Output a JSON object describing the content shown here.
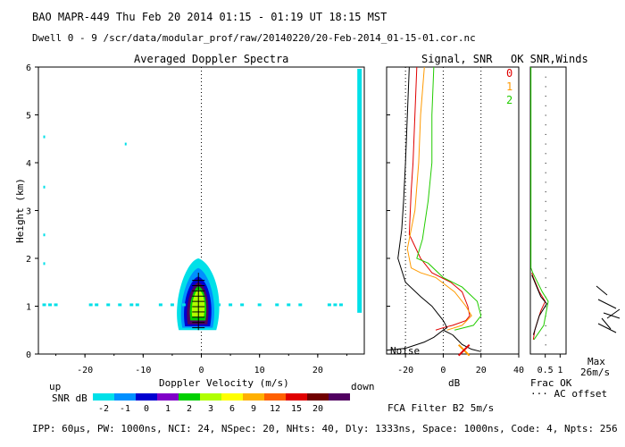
{
  "header": {
    "line1": "BAO  MAPR-449  Thu Feb 20 2014 01:15 - 01:19 UT 18:15 MST",
    "line2": "Dwell  0 - 9   /scr/data/modular_prof/raw/20140220/20-Feb-2014_01-15-01.cor.nc"
  },
  "panels": {
    "spectra_title": "Averaged Doppler Spectra",
    "signal_title": "Signal, SNR",
    "ok_title": "OK SNR,Winds"
  },
  "legend": {
    "labels": [
      "0",
      "1",
      "2"
    ],
    "colors": [
      "#e00000",
      "#ff9a00",
      "#22cc00"
    ]
  },
  "labels": {
    "up": "up",
    "down": "down",
    "snr_db": "SNR dB",
    "doppler_velocity": "Doppler Velocity (m/s)",
    "height": "Height (km)",
    "db": "dB",
    "noise": "Noise",
    "fca": "FCA Filter B2   5m/s",
    "frac_ok": "Frac OK",
    "ac_offset": "··· AC offset",
    "max": "Max",
    "max_speed": "26m/s"
  },
  "colorbar": {
    "ticks": [
      "-2",
      "-1",
      "0",
      "1",
      "2",
      "3",
      "6",
      "9",
      "12",
      "15",
      "20"
    ],
    "colors": [
      "#00e0e8",
      "#0090ff",
      "#0000d0",
      "#8000c8",
      "#00d000",
      "#b0ff00",
      "#ffff00",
      "#ffb000",
      "#ff6000",
      "#e00000",
      "#700000",
      "#500060"
    ]
  },
  "footer": "IPP:  60μs,  PW: 1000ns,  NCI:  24,  NSpec: 20,  NHts: 40,  Dly: 1333ns,  Space: 1000ns,  Code: 4,  Npts: 256",
  "chart_data": [
    {
      "type": "heatmap",
      "title": "Averaged Doppler Spectra",
      "xlabel": "Doppler Velocity (m/s)",
      "ylabel": "Height (km)",
      "xlim": [
        -28,
        28
      ],
      "ylim": [
        0,
        6
      ],
      "xticks": [
        "-20",
        "-10",
        "0",
        "10",
        "20"
      ],
      "yticks": [
        "0",
        "1",
        "2",
        "3",
        "4",
        "5",
        "6"
      ]
    },
    {
      "type": "line",
      "title": "Signal, SNR",
      "xlabel": "dB",
      "xlim": [
        -30,
        40
      ],
      "ylim": [
        0,
        6
      ],
      "xticks": [
        "-20",
        "0",
        "20",
        "40"
      ],
      "series": [
        {
          "name": "Noise",
          "color": "#000000",
          "x": [
            -30,
            -20,
            -10,
            -5,
            0,
            5,
            10,
            15,
            20
          ],
          "y": [
            0.08,
            0.12,
            0.25,
            0.35,
            0.5,
            0.4,
            0.2,
            0.1,
            0.05
          ]
        },
        {
          "name": "0",
          "color": "#e00000",
          "x": [
            -14,
            -15,
            -16,
            -17,
            -18,
            -12,
            -6,
            4,
            10,
            13,
            14,
            12,
            5,
            0,
            -4
          ],
          "y": [
            6,
            5,
            4,
            3.4,
            2.5,
            2.0,
            1.7,
            1.5,
            1.3,
            1.0,
            0.8,
            0.7,
            0.6,
            0.55,
            0.5
          ]
        },
        {
          "name": "1",
          "color": "#ff9a00",
          "x": [
            -10,
            -12,
            -13,
            -15,
            -19,
            -17,
            -12,
            -4,
            6,
            12,
            15,
            10,
            2
          ],
          "y": [
            6,
            5,
            4,
            3.0,
            2.2,
            1.8,
            1.7,
            1.6,
            1.3,
            1.0,
            0.8,
            0.6,
            0.5
          ]
        },
        {
          "name": "2",
          "color": "#22cc00",
          "x": [
            -5,
            -6,
            -6,
            -8,
            -11,
            -14,
            -8,
            0,
            10,
            18,
            20,
            16,
            6
          ],
          "y": [
            6,
            5,
            4,
            3.2,
            2.4,
            2.0,
            1.9,
            1.6,
            1.4,
            1.1,
            0.8,
            0.6,
            0.5
          ]
        },
        {
          "name": "",
          "color": "#000000",
          "x": [
            -18,
            -19,
            -20,
            -21,
            -22,
            -24,
            -20,
            -12,
            -6,
            0,
            2,
            0
          ],
          "y": [
            6,
            5,
            4,
            3.2,
            2.6,
            2.0,
            1.5,
            1.2,
            1.0,
            0.7,
            0.55,
            0.5
          ]
        }
      ]
    },
    {
      "type": "line",
      "title": "OK SNR,Winds",
      "xlabel": "Frac OK",
      "xlim": [
        0,
        1.2
      ],
      "ylim": [
        0,
        6
      ],
      "xticks": [
        "0.5",
        "1"
      ],
      "series": [
        {
          "name": "0",
          "color": "#e00000",
          "x": [
            0.05,
            0.1,
            0.3,
            0.5,
            0.35,
            0.15,
            0.1
          ],
          "y": [
            1.7,
            1.6,
            1.3,
            1.1,
            0.9,
            0.5,
            0.3
          ]
        },
        {
          "name": "2",
          "color": "#22cc00",
          "x": [
            0.02,
            0.02,
            0.08,
            0.4,
            0.6,
            0.45,
            0.12
          ],
          "y": [
            6,
            1.8,
            1.7,
            1.3,
            1.1,
            0.6,
            0.3
          ]
        }
      ]
    }
  ]
}
